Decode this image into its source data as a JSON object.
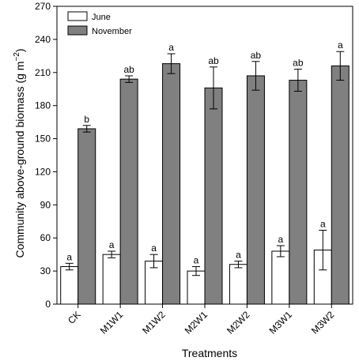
{
  "chart_data": {
    "type": "bar",
    "xlabel": "Treatments",
    "ylabel": "Community above-ground biomass (g m",
    "ylabel_unit_exponent": "−2",
    "ylabel_suffix": ")",
    "ylim": [
      0,
      270
    ],
    "yticks": [
      0,
      30,
      60,
      90,
      120,
      150,
      180,
      210,
      240,
      270
    ],
    "categories": [
      "CK",
      "M1W1",
      "M1W2",
      "M2W1",
      "M2W2",
      "M3W1",
      "M3W2"
    ],
    "legend_position": "top-left",
    "grid": false,
    "series": [
      {
        "name": "June",
        "color": "#ffffff",
        "values": [
          34,
          45,
          39,
          30,
          36,
          48,
          49
        ],
        "errors": [
          3,
          3,
          6,
          4,
          3,
          5,
          18
        ],
        "labels": [
          "a",
          "a",
          "a",
          "a",
          "a",
          "a",
          "a"
        ]
      },
      {
        "name": "November",
        "color": "#808080",
        "values": [
          159,
          204,
          218,
          196,
          207,
          203,
          216
        ],
        "errors": [
          3,
          3,
          9,
          19,
          13,
          10,
          13
        ],
        "labels": [
          "b",
          "ab",
          "a",
          "ab",
          "ab",
          "ab",
          "a"
        ]
      }
    ]
  }
}
